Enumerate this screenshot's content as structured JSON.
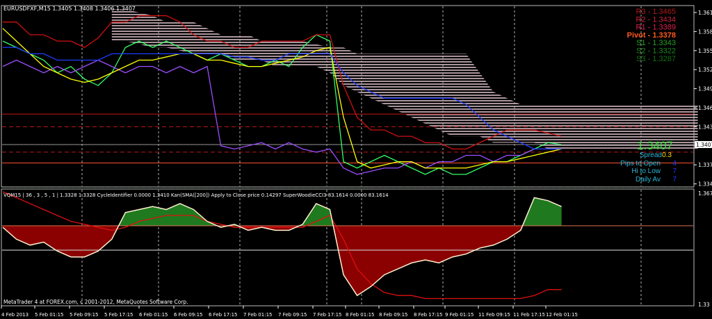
{
  "header": {
    "symbol_info": "EURUSDFXF,M15  1.3405 1.3408 1.3406 1.3407",
    "indicator_info": "VQM15 | 36 , 3 , 5 , 1  |  1.3328 1.3328  CycleIdentifier 0.0000 1.3410  Kan(SMA([200]) Apply to Close price 0.14297  SuperWoodieCCI3 83.1614 0.0000 83.1614",
    "copyright": "MetaTrader 4 at FOREX.com, c 2001-2012, MetaQuotes Software Corp."
  },
  "pivots": [
    {
      "label": "R3 - 1.3465",
      "color": "#b01818"
    },
    {
      "label": "R2 - 1.3434",
      "color": "#d0203a"
    },
    {
      "label": "R1 - 1.3389",
      "color": "#e02050"
    },
    {
      "label": "Pivot - 1.3378",
      "color": "#ff5a1e"
    },
    {
      "label": "S1 - 1.3343",
      "color": "#22a022"
    },
    {
      "label": "S2 - 1.3322",
      "color": "#1a8a1a"
    },
    {
      "label": "S3 - 1.3287",
      "color": "#147014"
    }
  ],
  "info_panel": {
    "price": "1.3407",
    "spread_label": "Spread",
    "spread_value": "0.3",
    "pips_to_open_label": "Pips to Open",
    "pips_to_open_value": "4",
    "hi_to_low_label": "Hi to Low",
    "hi_to_low_value": "7",
    "daily_av_label": "Daily Av",
    "daily_av_value": "7"
  },
  "colors": {
    "background": "#000000",
    "price": "#33ff66",
    "purple": "#9b4dff",
    "yellow": "#ffff00",
    "kijun": "#d01010",
    "blue": "#1e3cff",
    "cloud": "#c8b0b8"
  },
  "chart_data": [
    {
      "type": "line",
      "title": "",
      "x_tick_labels": [
        "4 Feb 2013",
        "5 Feb 01:15",
        "5 Feb 09:15",
        "5 Feb 17:15",
        "6 Feb 01:15",
        "6 Feb 09:15",
        "6 Feb 17:15",
        "7 Feb 01:15",
        "7 Feb 09:15",
        "7 Feb 17:15",
        "8 Feb 01:15",
        "8 Feb 09:15",
        "8 Feb 17:15",
        "9 Feb 01:15",
        "11 Feb 09:15",
        "11 Feb 17:15",
        "12 Feb 01:15"
      ],
      "y_tick_labels": [
        "1.3615",
        "1.3585",
        "1.3555",
        "1.3525",
        "1.3495",
        "1.3465",
        "1.3435",
        "1.3375",
        "1.3345"
      ],
      "current_price_label": "1.3407",
      "ylim": [
        1.3345,
        1.3615
      ],
      "grid": true,
      "levels": [
        1.3455,
        1.3435,
        1.3395,
        1.3378,
        1.334
      ],
      "series": [
        {
          "color": "#33ff66",
          "values": [
            1.357,
            1.356,
            1.355,
            1.354,
            1.352,
            1.353,
            1.351,
            1.35,
            1.352,
            1.356,
            1.357,
            1.356,
            1.357,
            1.356,
            1.355,
            1.354,
            1.355,
            1.354,
            1.353,
            1.353,
            1.354,
            1.353,
            1.356,
            1.358,
            1.357,
            1.338,
            1.337,
            1.338,
            1.339,
            1.338,
            1.337,
            1.336,
            1.337,
            1.336,
            1.336,
            1.337,
            1.338,
            1.338,
            1.339,
            1.34,
            1.341,
            1.3407
          ]
        },
        {
          "color": "#9b4dff",
          "values": [
            1.353,
            1.354,
            1.353,
            1.352,
            1.353,
            1.352,
            1.353,
            1.354,
            1.353,
            1.352,
            1.353,
            1.353,
            1.352,
            1.353,
            1.352,
            1.353,
            1.3405,
            1.34,
            1.3405,
            1.341,
            1.34,
            1.341,
            1.34,
            1.3395,
            1.34,
            1.337,
            1.336,
            1.3365,
            1.337,
            1.337,
            1.338,
            1.337,
            1.338,
            1.338,
            1.339,
            1.339,
            1.338,
            1.339,
            1.339,
            1.34,
            1.34,
            1.34
          ]
        },
        {
          "color": "#ffff00",
          "values": [
            1.359,
            1.357,
            1.355,
            1.353,
            1.352,
            1.351,
            1.3505,
            1.351,
            1.352,
            1.353,
            1.354,
            1.354,
            1.3545,
            1.355,
            1.355,
            1.354,
            1.354,
            1.3535,
            1.353,
            1.353,
            1.3535,
            1.354,
            1.3545,
            1.3555,
            1.356,
            1.345,
            1.338,
            1.337,
            1.3375,
            1.338,
            1.338,
            1.337,
            1.337,
            1.337,
            1.337,
            1.3375,
            1.338,
            1.338,
            1.3385,
            1.339,
            1.3395,
            1.34
          ]
        },
        {
          "color": "#d01010",
          "values": [
            1.36,
            1.36,
            1.358,
            1.358,
            1.357,
            1.357,
            1.356,
            1.3575,
            1.36,
            1.36,
            1.361,
            1.361,
            1.361,
            1.36,
            1.358,
            1.357,
            1.357,
            1.356,
            1.356,
            1.357,
            1.357,
            1.357,
            1.357,
            1.358,
            1.358,
            1.35,
            1.345,
            1.343,
            1.343,
            1.342,
            1.342,
            1.341,
            1.341,
            1.34,
            1.34,
            1.341,
            1.342,
            1.343,
            1.343,
            1.343,
            1.3425,
            1.342
          ]
        },
        {
          "color": "#1e3cff",
          "values": [
            1.356,
            1.356,
            1.355,
            1.355,
            1.354,
            1.354,
            1.354,
            1.354,
            1.355,
            1.355,
            1.355,
            1.355,
            1.355,
            1.355,
            1.355,
            1.355,
            1.355,
            1.3545,
            1.3545,
            1.354,
            1.354,
            1.355,
            1.355,
            1.355,
            1.355,
            1.352,
            1.35,
            1.349,
            1.348,
            1.348,
            1.348,
            1.348,
            1.348,
            1.348,
            1.347,
            1.345,
            1.343,
            1.342,
            1.341,
            1.34,
            1.34,
            1.34
          ]
        }
      ],
      "cloud": {
        "start_index": 8,
        "upper": [
          1.362,
          1.362,
          1.3615,
          1.361,
          1.36,
          1.36,
          1.36,
          1.359,
          1.358,
          1.358,
          1.358,
          1.357,
          1.357,
          1.357,
          1.357,
          1.3565,
          1.356,
          1.356,
          1.355,
          1.355,
          1.355,
          1.355,
          1.355,
          1.355,
          1.355,
          1.355,
          1.355,
          1.352,
          1.349,
          1.348,
          1.347,
          1.347,
          1.347,
          1.347,
          1.347,
          1.347,
          1.347,
          1.347,
          1.347,
          1.347,
          1.347,
          1.347,
          1.347,
          1.347
        ],
        "lower": [
          1.357,
          1.357,
          1.3565,
          1.356,
          1.356,
          1.3555,
          1.355,
          1.355,
          1.355,
          1.354,
          1.354,
          1.354,
          1.353,
          1.353,
          1.353,
          1.353,
          1.352,
          1.35,
          1.349,
          1.348,
          1.347,
          1.346,
          1.345,
          1.344,
          1.343,
          1.342,
          1.342,
          1.342,
          1.341,
          1.341,
          1.341,
          1.341,
          1.34,
          1.34,
          1.34,
          1.34,
          1.34,
          1.34,
          1.34,
          1.34,
          1.34,
          1.34,
          1.34,
          1.34
        ]
      }
    },
    {
      "type": "line",
      "title": "",
      "y_tick_labels": [
        "1.3675",
        "1.33"
      ],
      "ylim": [
        1.33,
        1.3675
      ],
      "baseline": 1.3565,
      "zero_line": 1.3483,
      "series": [
        {
          "color": "#fff0d0",
          "values": [
            1.356,
            1.352,
            1.35,
            1.351,
            1.348,
            1.346,
            1.346,
            1.348,
            1.352,
            1.361,
            1.362,
            1.363,
            1.362,
            1.364,
            1.362,
            1.358,
            1.356,
            1.357,
            1.355,
            1.356,
            1.355,
            1.355,
            1.357,
            1.364,
            1.362,
            1.34,
            1.333,
            1.336,
            1.34,
            1.342,
            1.344,
            1.345,
            1.344,
            1.346,
            1.347,
            1.349,
            1.35,
            1.352,
            1.355,
            1.366,
            1.365,
            1.363
          ]
        },
        {
          "color": "#e01010",
          "values": [
            1.368,
            1.366,
            1.364,
            1.362,
            1.36,
            1.358,
            1.357,
            1.356,
            1.355,
            1.356,
            1.358,
            1.359,
            1.36,
            1.36,
            1.36,
            1.358,
            1.357,
            1.356,
            1.356,
            1.356,
            1.356,
            1.356,
            1.356,
            1.358,
            1.36,
            1.352,
            1.342,
            1.337,
            1.334,
            1.333,
            1.333,
            1.332,
            1.332,
            1.332,
            1.332,
            1.332,
            1.332,
            1.332,
            1.332,
            1.333,
            1.335,
            1.335
          ]
        }
      ]
    }
  ]
}
